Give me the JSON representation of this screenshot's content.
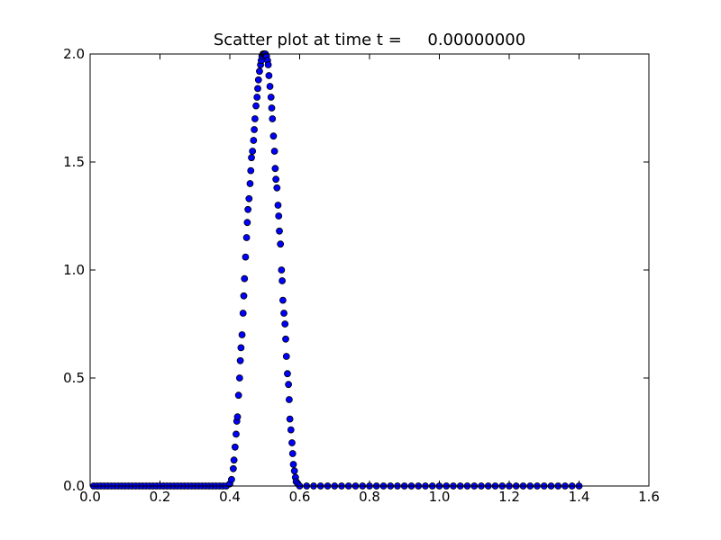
{
  "chart_data": {
    "type": "scatter",
    "title": "Scatter plot at time t =     0.00000000",
    "xlabel": "",
    "ylabel": "",
    "xlim": [
      0.0,
      1.6
    ],
    "ylim": [
      0.0,
      2.0
    ],
    "xticks": [
      "0.0",
      "0.2",
      "0.4",
      "0.6",
      "0.8",
      "1.0",
      "1.2",
      "1.4",
      "1.6"
    ],
    "yticks": [
      "0.0",
      "0.5",
      "1.0",
      "1.5",
      "2.0"
    ],
    "grid": false,
    "marker_color": "#0000ff",
    "marker_edge_color": "#000000",
    "series": [
      {
        "x": [
          0.01,
          0.02,
          0.03,
          0.04,
          0.05,
          0.06,
          0.07,
          0.08,
          0.09,
          0.1,
          0.11,
          0.12,
          0.13,
          0.14,
          0.15,
          0.16,
          0.17,
          0.18,
          0.19,
          0.2,
          0.21,
          0.22,
          0.23,
          0.24,
          0.25,
          0.26,
          0.27,
          0.28,
          0.29,
          0.3,
          0.31,
          0.32,
          0.33,
          0.34,
          0.35,
          0.36,
          0.37,
          0.38,
          0.39,
          0.4,
          0.405,
          0.41,
          0.412,
          0.415,
          0.418,
          0.42,
          0.422,
          0.425,
          0.428,
          0.43,
          0.432,
          0.435,
          0.438,
          0.44,
          0.442,
          0.445,
          0.448,
          0.45,
          0.452,
          0.455,
          0.458,
          0.46,
          0.462,
          0.465,
          0.468,
          0.47,
          0.472,
          0.475,
          0.478,
          0.48,
          0.482,
          0.485,
          0.488,
          0.49,
          0.492,
          0.495,
          0.498,
          0.5,
          0.502,
          0.505,
          0.508,
          0.51,
          0.512,
          0.515,
          0.518,
          0.52,
          0.522,
          0.525,
          0.528,
          0.53,
          0.532,
          0.535,
          0.538,
          0.54,
          0.542,
          0.545,
          0.548,
          0.55,
          0.552,
          0.555,
          0.558,
          0.56,
          0.562,
          0.565,
          0.568,
          0.57,
          0.572,
          0.575,
          0.578,
          0.58,
          0.582,
          0.585,
          0.588,
          0.59,
          0.595,
          0.6,
          0.62,
          0.64,
          0.66,
          0.68,
          0.7,
          0.72,
          0.74,
          0.76,
          0.78,
          0.8,
          0.82,
          0.84,
          0.86,
          0.88,
          0.9,
          0.92,
          0.94,
          0.96,
          0.98,
          1.0,
          1.02,
          1.04,
          1.06,
          1.08,
          1.1,
          1.12,
          1.14,
          1.16,
          1.18,
          1.2,
          1.22,
          1.24,
          1.26,
          1.28,
          1.3,
          1.32,
          1.34,
          1.36,
          1.38,
          1.4
        ],
        "y": [
          0,
          0,
          0,
          0,
          0,
          0,
          0,
          0,
          0,
          0,
          0,
          0,
          0,
          0,
          0,
          0,
          0,
          0,
          0,
          0,
          0,
          0,
          0,
          0,
          0,
          0,
          0,
          0,
          0,
          0,
          0,
          0,
          0,
          0,
          0,
          0,
          0,
          0,
          0,
          0.01,
          0.03,
          0.08,
          0.12,
          0.18,
          0.24,
          0.3,
          0.32,
          0.42,
          0.5,
          0.58,
          0.64,
          0.7,
          0.8,
          0.88,
          0.96,
          1.06,
          1.15,
          1.22,
          1.28,
          1.33,
          1.4,
          1.46,
          1.52,
          1.55,
          1.6,
          1.65,
          1.7,
          1.76,
          1.8,
          1.84,
          1.88,
          1.92,
          1.95,
          1.97,
          1.99,
          2.0,
          2.0,
          2.0,
          2.0,
          1.99,
          1.97,
          1.95,
          1.9,
          1.85,
          1.8,
          1.75,
          1.7,
          1.62,
          1.55,
          1.47,
          1.42,
          1.38,
          1.3,
          1.25,
          1.18,
          1.12,
          1.0,
          0.95,
          0.86,
          0.8,
          0.75,
          0.68,
          0.6,
          0.52,
          0.47,
          0.4,
          0.31,
          0.26,
          0.2,
          0.15,
          0.1,
          0.07,
          0.04,
          0.02,
          0.01,
          0,
          0,
          0,
          0,
          0,
          0,
          0,
          0,
          0,
          0,
          0,
          0,
          0,
          0,
          0,
          0,
          0,
          0,
          0,
          0,
          0,
          0,
          0,
          0,
          0,
          0,
          0,
          0,
          0,
          0,
          0,
          0,
          0,
          0,
          0,
          0,
          0,
          0,
          0,
          0,
          0
        ]
      }
    ]
  }
}
